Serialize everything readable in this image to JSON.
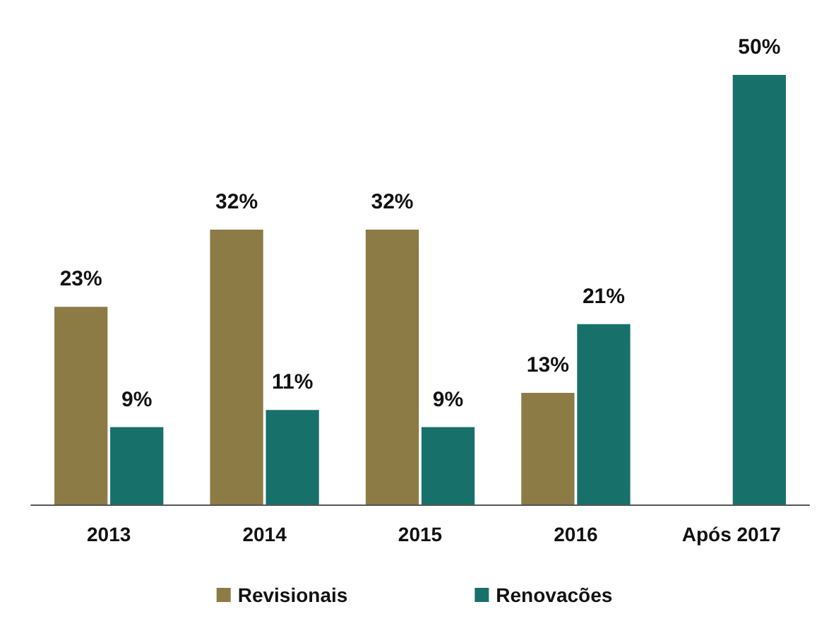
{
  "chart_data": {
    "type": "bar",
    "categories": [
      "2013",
      "2014",
      "2015",
      "2016",
      "Após 2017"
    ],
    "series": [
      {
        "name": "Revisionais",
        "color": "#8c7b45",
        "values": [
          23,
          32,
          32,
          13,
          null
        ],
        "value_labels": [
          "23%",
          "32%",
          "32%",
          "13%",
          null
        ]
      },
      {
        "name": "Renovacões",
        "color": "#17706a",
        "values": [
          9,
          11,
          9,
          21,
          50
        ],
        "value_labels": [
          "9%",
          "11%",
          "9%",
          "21%",
          "50%"
        ]
      }
    ],
    "legend": "bottom"
  }
}
